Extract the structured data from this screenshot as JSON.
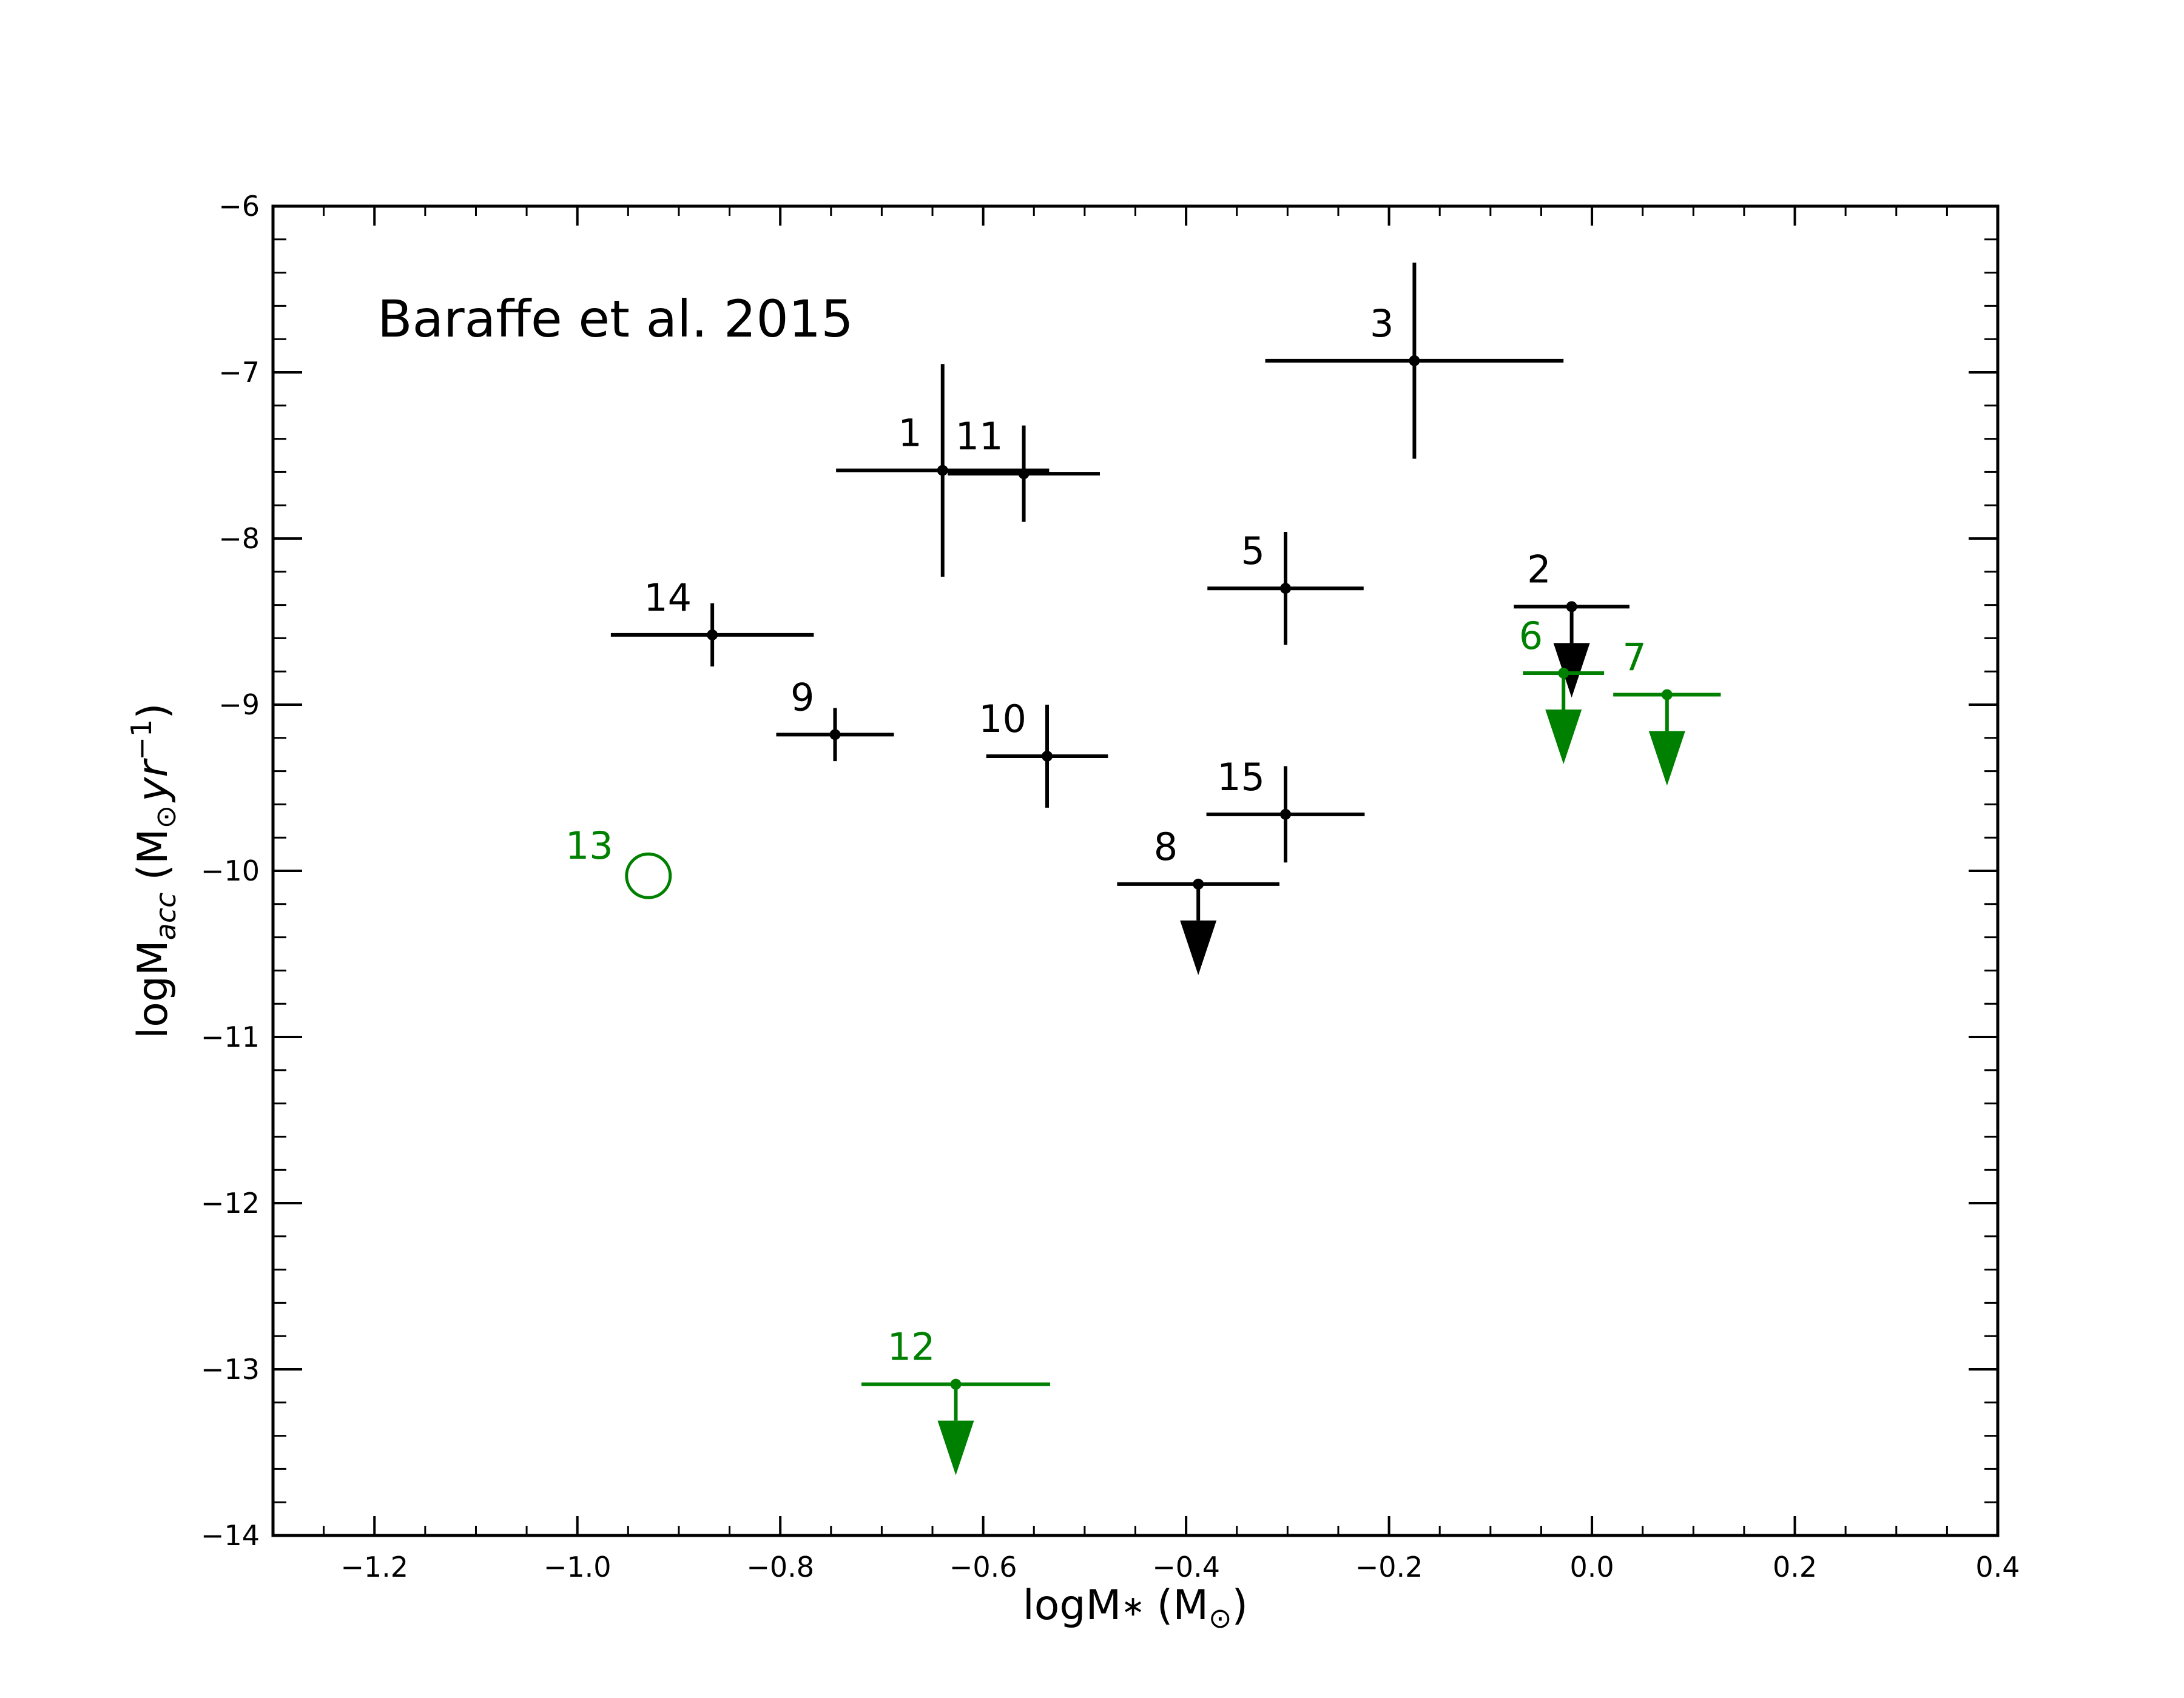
{
  "chart_data": {
    "type": "scatter",
    "title": "",
    "annotation": "Baraffe et al. 2015",
    "xlabel": {
      "prefix": "logM",
      "sub": "∗",
      "unit": "(M",
      "unit_sub": "⊙",
      "close": ")"
    },
    "ylabel": {
      "prefix": "logM",
      "sub": "acc",
      "unit_open": "(M",
      "unit_sub": "⊙",
      "unit_rest": "yr",
      "sup": "−1",
      "close": ")"
    },
    "xlim": [
      -1.3,
      0.4
    ],
    "ylim": [
      -14,
      -6
    ],
    "xticks": [
      -1.2,
      -1.0,
      -0.8,
      -0.6,
      -0.4,
      -0.2,
      0.0,
      0.2,
      0.4
    ],
    "xtick_labels": [
      "−1.2",
      "−1.0",
      "−0.8",
      "−0.6",
      "−0.4",
      "−0.2",
      "0.0",
      "0.2",
      "0.4"
    ],
    "yticks": [
      -14,
      -13,
      -12,
      -11,
      -10,
      -9,
      -8,
      -7,
      -6
    ],
    "ytick_labels": [
      "−14",
      "−13",
      "−12",
      "−11",
      "−10",
      "−9",
      "−8",
      "−7",
      "−6"
    ],
    "colors": {
      "detection": "#000000",
      "green": "#008000"
    },
    "points": [
      {
        "label": "1",
        "x": -0.64,
        "y": -7.59,
        "xerr": [
          0.105,
          0.105
        ],
        "yerr": [
          0.64,
          0.64
        ],
        "color": "#000000",
        "upper_limit": false
      },
      {
        "label": "11",
        "x": -0.56,
        "y": -7.61,
        "xerr": [
          0.075,
          0.075
        ],
        "yerr": [
          0.29,
          0.29
        ],
        "color": "#000000",
        "upper_limit": false
      },
      {
        "label": "3",
        "x": -0.175,
        "y": -6.93,
        "xerr": [
          0.147,
          0.147
        ],
        "yerr": [
          0.59,
          0.59
        ],
        "color": "#000000",
        "upper_limit": false
      },
      {
        "label": "14",
        "x": -0.867,
        "y": -8.58,
        "xerr": [
          0.1,
          0.1
        ],
        "yerr": [
          0.19,
          0.19
        ],
        "color": "#000000",
        "upper_limit": false
      },
      {
        "label": "9",
        "x": -0.746,
        "y": -9.18,
        "xerr": [
          0.058,
          0.058
        ],
        "yerr": [
          0.16,
          0.16
        ],
        "color": "#000000",
        "upper_limit": false
      },
      {
        "label": "10",
        "x": -0.537,
        "y": -9.31,
        "xerr": [
          0.06,
          0.06
        ],
        "yerr": [
          0.31,
          0.31
        ],
        "color": "#000000",
        "upper_limit": false
      },
      {
        "label": "5",
        "x": -0.302,
        "y": -8.3,
        "xerr": [
          0.077,
          0.077
        ],
        "yerr": [
          0.34,
          0.34
        ],
        "color": "#000000",
        "upper_limit": false
      },
      {
        "label": "15",
        "x": -0.302,
        "y": -9.66,
        "xerr": [
          0.078,
          0.078
        ],
        "yerr": [
          0.29,
          0.29
        ],
        "color": "#000000",
        "upper_limit": false
      },
      {
        "label": "8",
        "x": -0.388,
        "y": -10.08,
        "xerr": [
          0.08,
          0.08
        ],
        "color": "#000000",
        "upper_limit": true
      },
      {
        "label": "2",
        "x": -0.02,
        "y": -8.41,
        "xerr": [
          0.057,
          0.057
        ],
        "color": "#000000",
        "upper_limit": true
      },
      {
        "label": "6",
        "x": -0.028,
        "y": -8.81,
        "xerr": [
          0.04,
          0.04
        ],
        "color": "#008000",
        "upper_limit": true
      },
      {
        "label": "7",
        "x": 0.074,
        "y": -8.94,
        "xerr": [
          0.053,
          0.053
        ],
        "color": "#008000",
        "upper_limit": true
      },
      {
        "label": "12",
        "x": -0.627,
        "y": -13.09,
        "xerr": [
          0.093,
          0.093
        ],
        "color": "#008000",
        "upper_limit": true
      },
      {
        "label": "13",
        "x": -0.93,
        "y": -10.03,
        "color": "#008000",
        "marker": "open-circle"
      }
    ]
  }
}
